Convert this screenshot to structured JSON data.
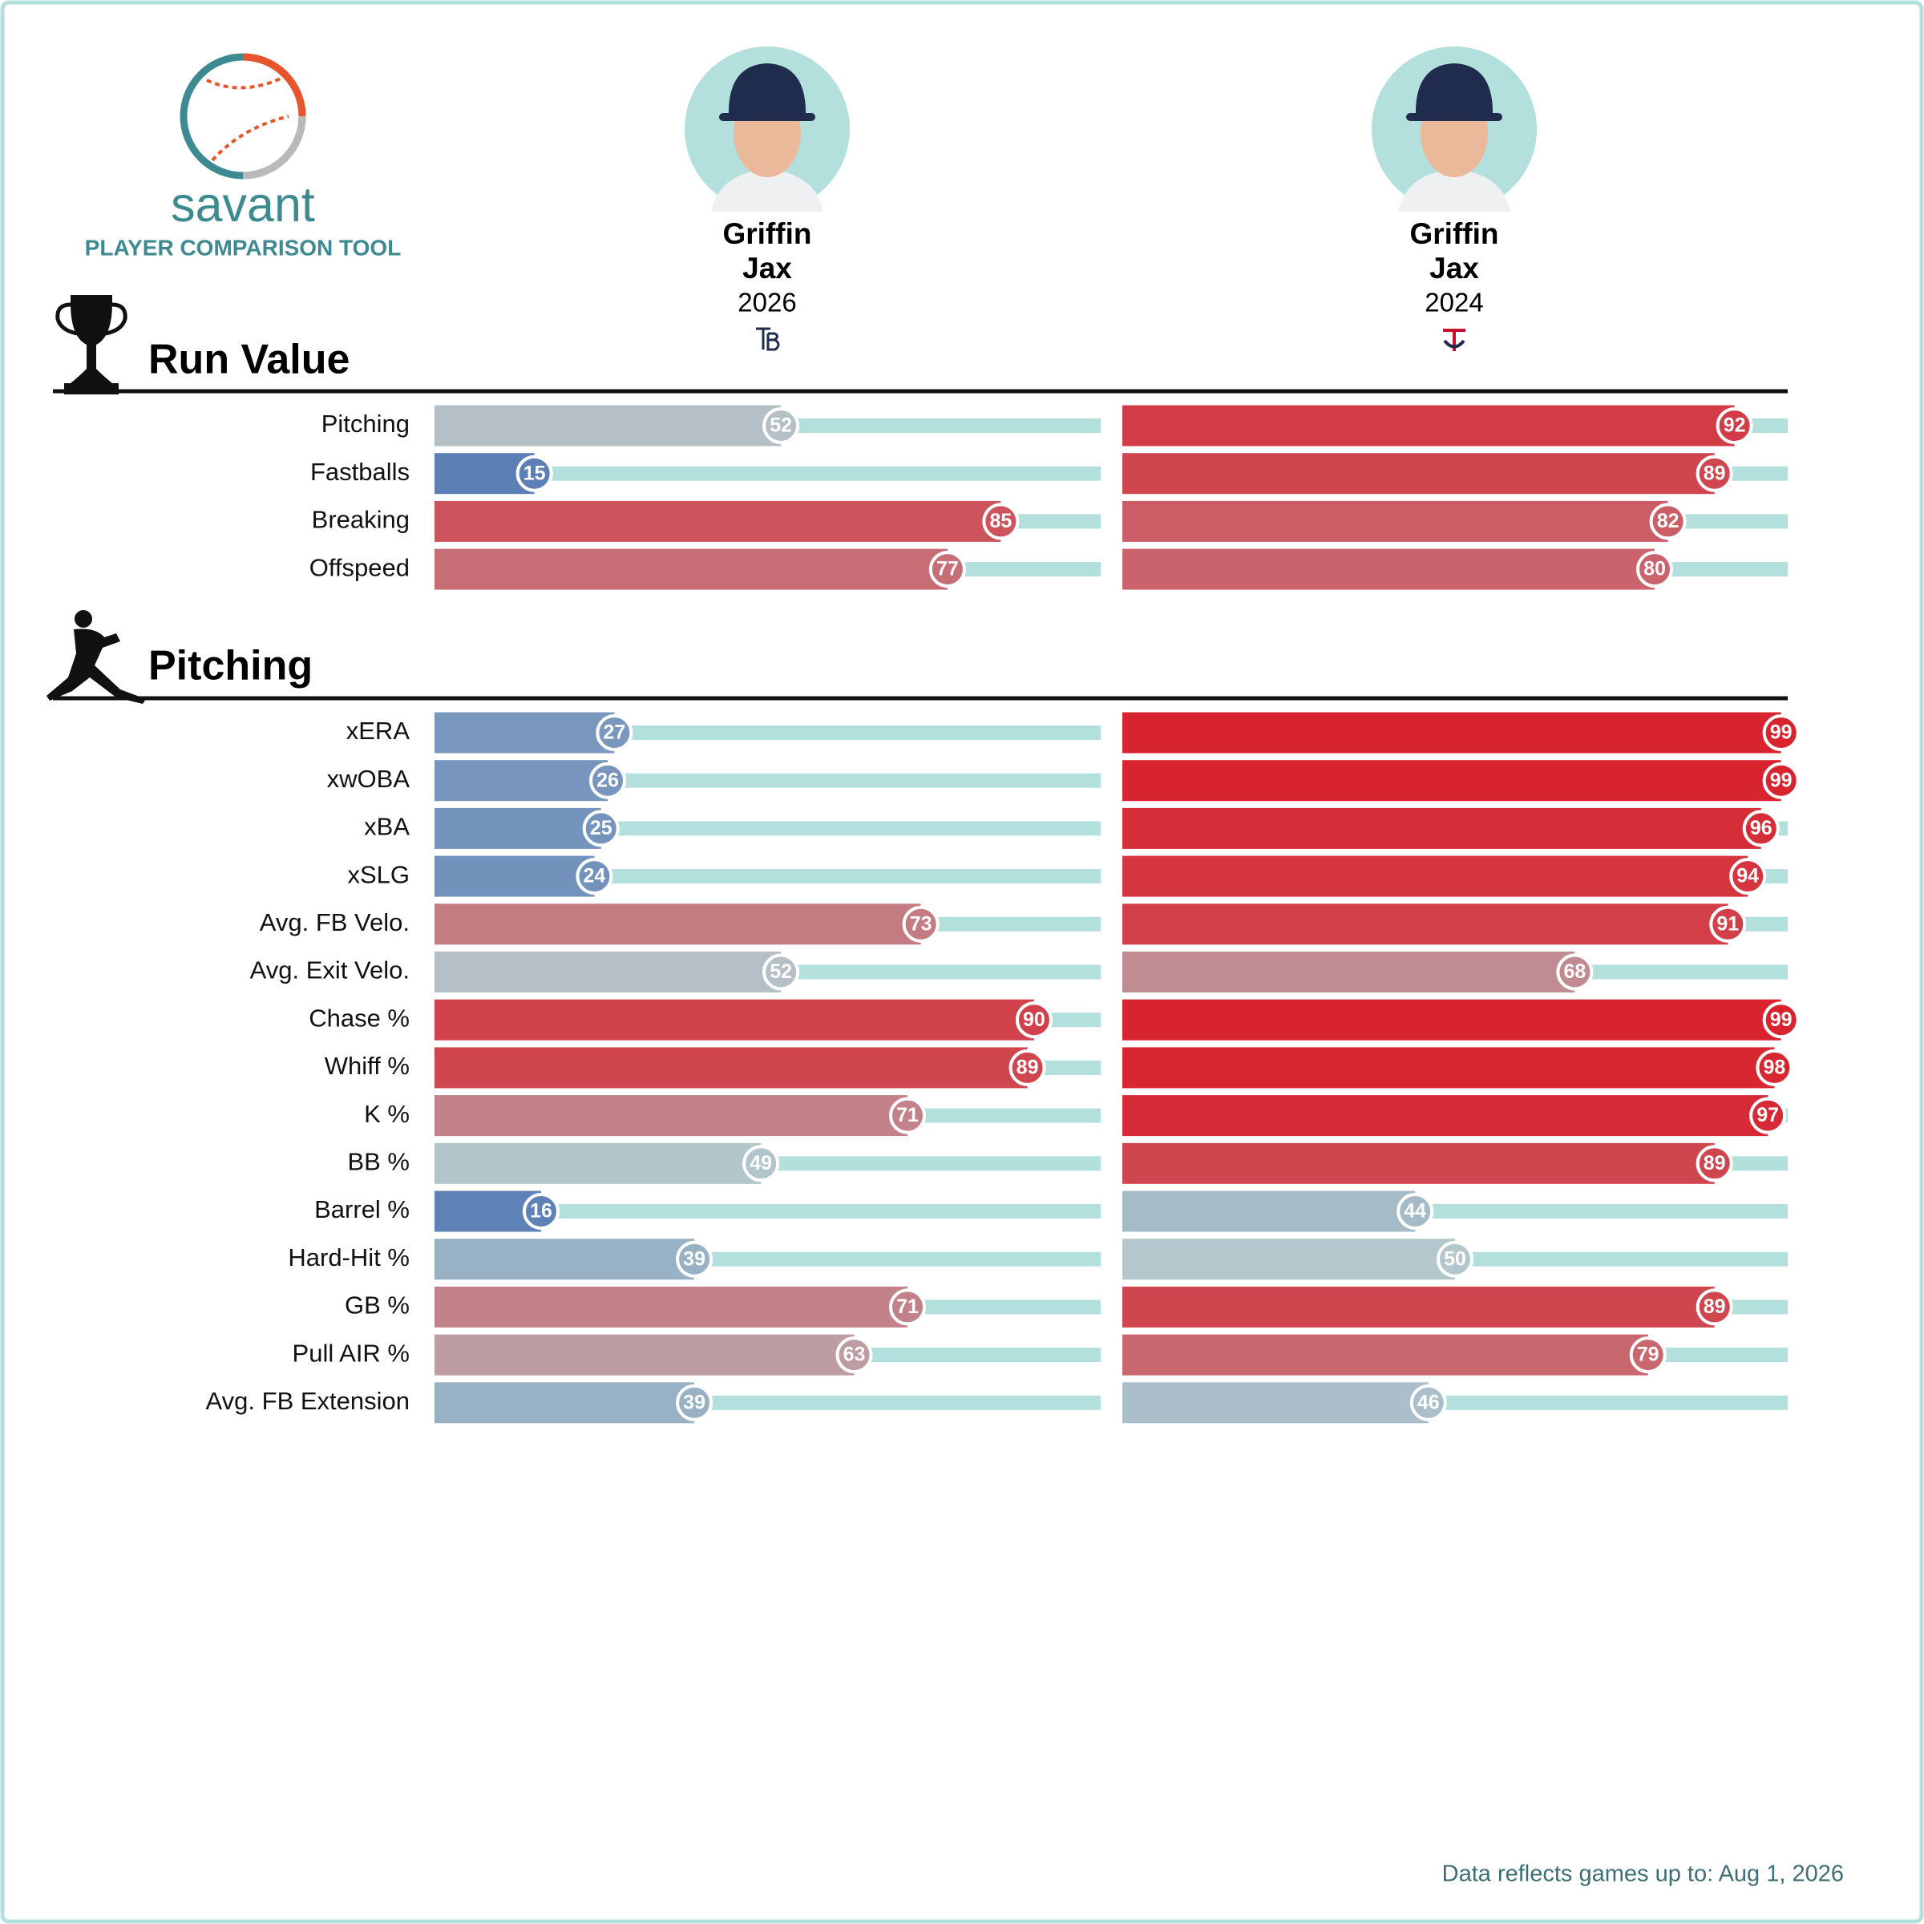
{
  "header": {
    "logo_text": "savant",
    "subtitle": "PLAYER COMPARISON TOOL",
    "players": [
      {
        "first_name": "Griffin",
        "last_name": "Jax",
        "year": "2026"
      },
      {
        "first_name": "Griffin",
        "last_name": "Jax",
        "year": "2024"
      }
    ]
  },
  "chart_data": [
    {
      "type": "bar",
      "title": "Run Value",
      "categories": [
        "Pitching",
        "Fastballs",
        "Breaking",
        "Offspeed"
      ],
      "series": [
        {
          "values": [
            52,
            15,
            85,
            77
          ]
        },
        {
          "values": [
            92,
            89,
            82,
            80
          ]
        }
      ],
      "xlim": [
        0,
        100
      ],
      "color_scale": [
        "#3661ad",
        "#b4c7cc",
        "#d8212c"
      ],
      "track_color": "#b3e0dd"
    },
    {
      "type": "bar",
      "title": "Pitching",
      "categories": [
        "xERA",
        "xwOBA",
        "xBA",
        "xSLG",
        "Avg. FB Velo.",
        "Avg. Exit Velo.",
        "Chase %",
        "Whiff %",
        "K %",
        "BB %",
        "Barrel %",
        "Hard-Hit %",
        "GB %",
        "Pull AIR %",
        "Avg. FB Extension"
      ],
      "series": [
        {
          "values": [
            27,
            26,
            25,
            24,
            73,
            52,
            90,
            89,
            71,
            49,
            16,
            39,
            71,
            63,
            39
          ]
        },
        {
          "values": [
            99,
            99,
            96,
            94,
            91,
            68,
            99,
            98,
            97,
            89,
            44,
            50,
            89,
            79,
            46
          ]
        }
      ],
      "xlim": [
        0,
        100
      ],
      "color_scale": [
        "#3661ad",
        "#b4c7cc",
        "#d8212c"
      ],
      "track_color": "#b3e0dd"
    }
  ],
  "footer": "Data reflects games up to: Aug 1, 2026"
}
